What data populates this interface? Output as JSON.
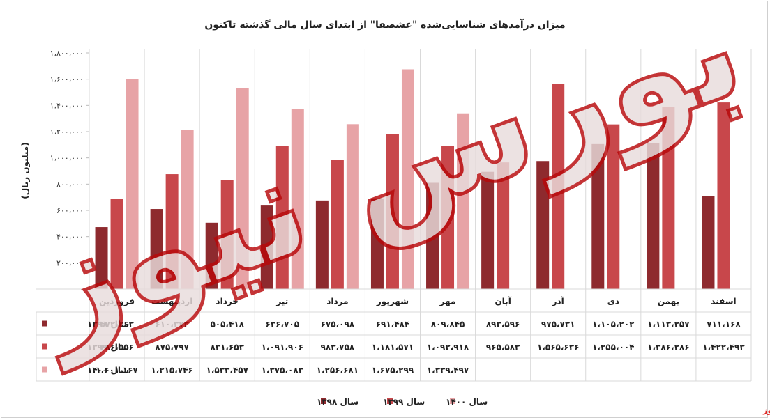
{
  "chart_data": {
    "type": "bar",
    "title": "میزان درآمدهای شناسایی‌شده \"غشصفا\" از ابتدای سال مالی گذشته تاکنون",
    "ylabel": "(میلیون ریال)",
    "ylim": [
      0,
      1800000
    ],
    "yticks": [
      0,
      200000,
      400000,
      600000,
      800000,
      1000000,
      1200000,
      1400000,
      1600000,
      1800000
    ],
    "ytick_labels": [
      "۰",
      "۲۰۰،۰۰۰",
      "۴۰۰،۰۰۰",
      "۶۰۰،۰۰۰",
      "۸۰۰،۰۰۰",
      "۱،۰۰۰،۰۰۰",
      "۱،۲۰۰،۰۰۰",
      "۱،۴۰۰،۰۰۰",
      "۱،۶۰۰،۰۰۰",
      "۱،۸۰۰،۰۰۰"
    ],
    "categories": [
      "فروردین",
      "اردیبهشت",
      "خرداد",
      "تیر",
      "مرداد",
      "شهریور",
      "مهر",
      "آبان",
      "آذر",
      "دی",
      "بهمن",
      "اسفند"
    ],
    "series": [
      {
        "name": "سال ۱۳۹۸",
        "color": "#8e2a2e",
        "values": [
          472263,
          610373,
          505418,
          636705,
          675098,
          691484,
          809845,
          893596,
          975731,
          1105202,
          1113257,
          711168
        ],
        "labels": [
          "۴۷۲،۲۶۳",
          "۶۱۰،۳۷۳",
          "۵۰۵،۴۱۸",
          "۶۳۶،۷۰۵",
          "۶۷۵،۰۹۸",
          "۶۹۱،۴۸۴",
          "۸۰۹،۸۴۵",
          "۸۹۳،۵۹۶",
          "۹۷۵،۷۳۱",
          "۱،۱۰۵،۲۰۲",
          "۱،۱۱۳،۲۵۷",
          "۷۱۱،۱۶۸"
        ]
      },
      {
        "name": "سال ۱۳۹۹",
        "color": "#c8474b",
        "values": [
          686556,
          875797,
          831653,
          1091906,
          983758,
          1181571,
          1092918,
          965583,
          1565636,
          1255004,
          1386286,
          1422493
        ],
        "labels": [
          "۶۸۶،۵۵۶",
          "۸۷۵،۷۹۷",
          "۸۳۱،۶۵۳",
          "۱،۰۹۱،۹۰۶",
          "۹۸۳،۷۵۸",
          "۱،۱۸۱،۵۷۱",
          "۱،۰۹۲،۹۱۸",
          "۹۶۵،۵۸۳",
          "۱،۵۶۵،۶۳۶",
          "۱،۲۵۵،۰۰۴",
          "۱،۳۸۶،۲۸۶",
          "۱،۴۲۲،۴۹۳"
        ]
      },
      {
        "name": "سال ۱۴۰۰",
        "color": "#e7a3a6",
        "values": [
          1601167,
          1215746,
          1533457,
          1375083,
          1256681,
          1675299,
          1339497,
          null,
          null,
          null,
          null,
          null
        ],
        "labels": [
          "۱،۶۰۱،۱۶۷",
          "۱،۲۱۵،۷۴۶",
          "۱،۵۳۳،۴۵۷",
          "۱،۳۷۵،۰۸۳",
          "۱،۲۵۶،۶۸۱",
          "۱،۶۷۵،۲۹۹",
          "۱،۳۳۹،۴۹۷",
          "",
          "",
          "",
          "",
          ""
        ]
      }
    ],
    "legend_position": "bottom",
    "data_table": true,
    "grid": "vertical category separators"
  },
  "watermark": {
    "large_text": "بورس نیوز",
    "corner_text": "بورس نیوز"
  }
}
